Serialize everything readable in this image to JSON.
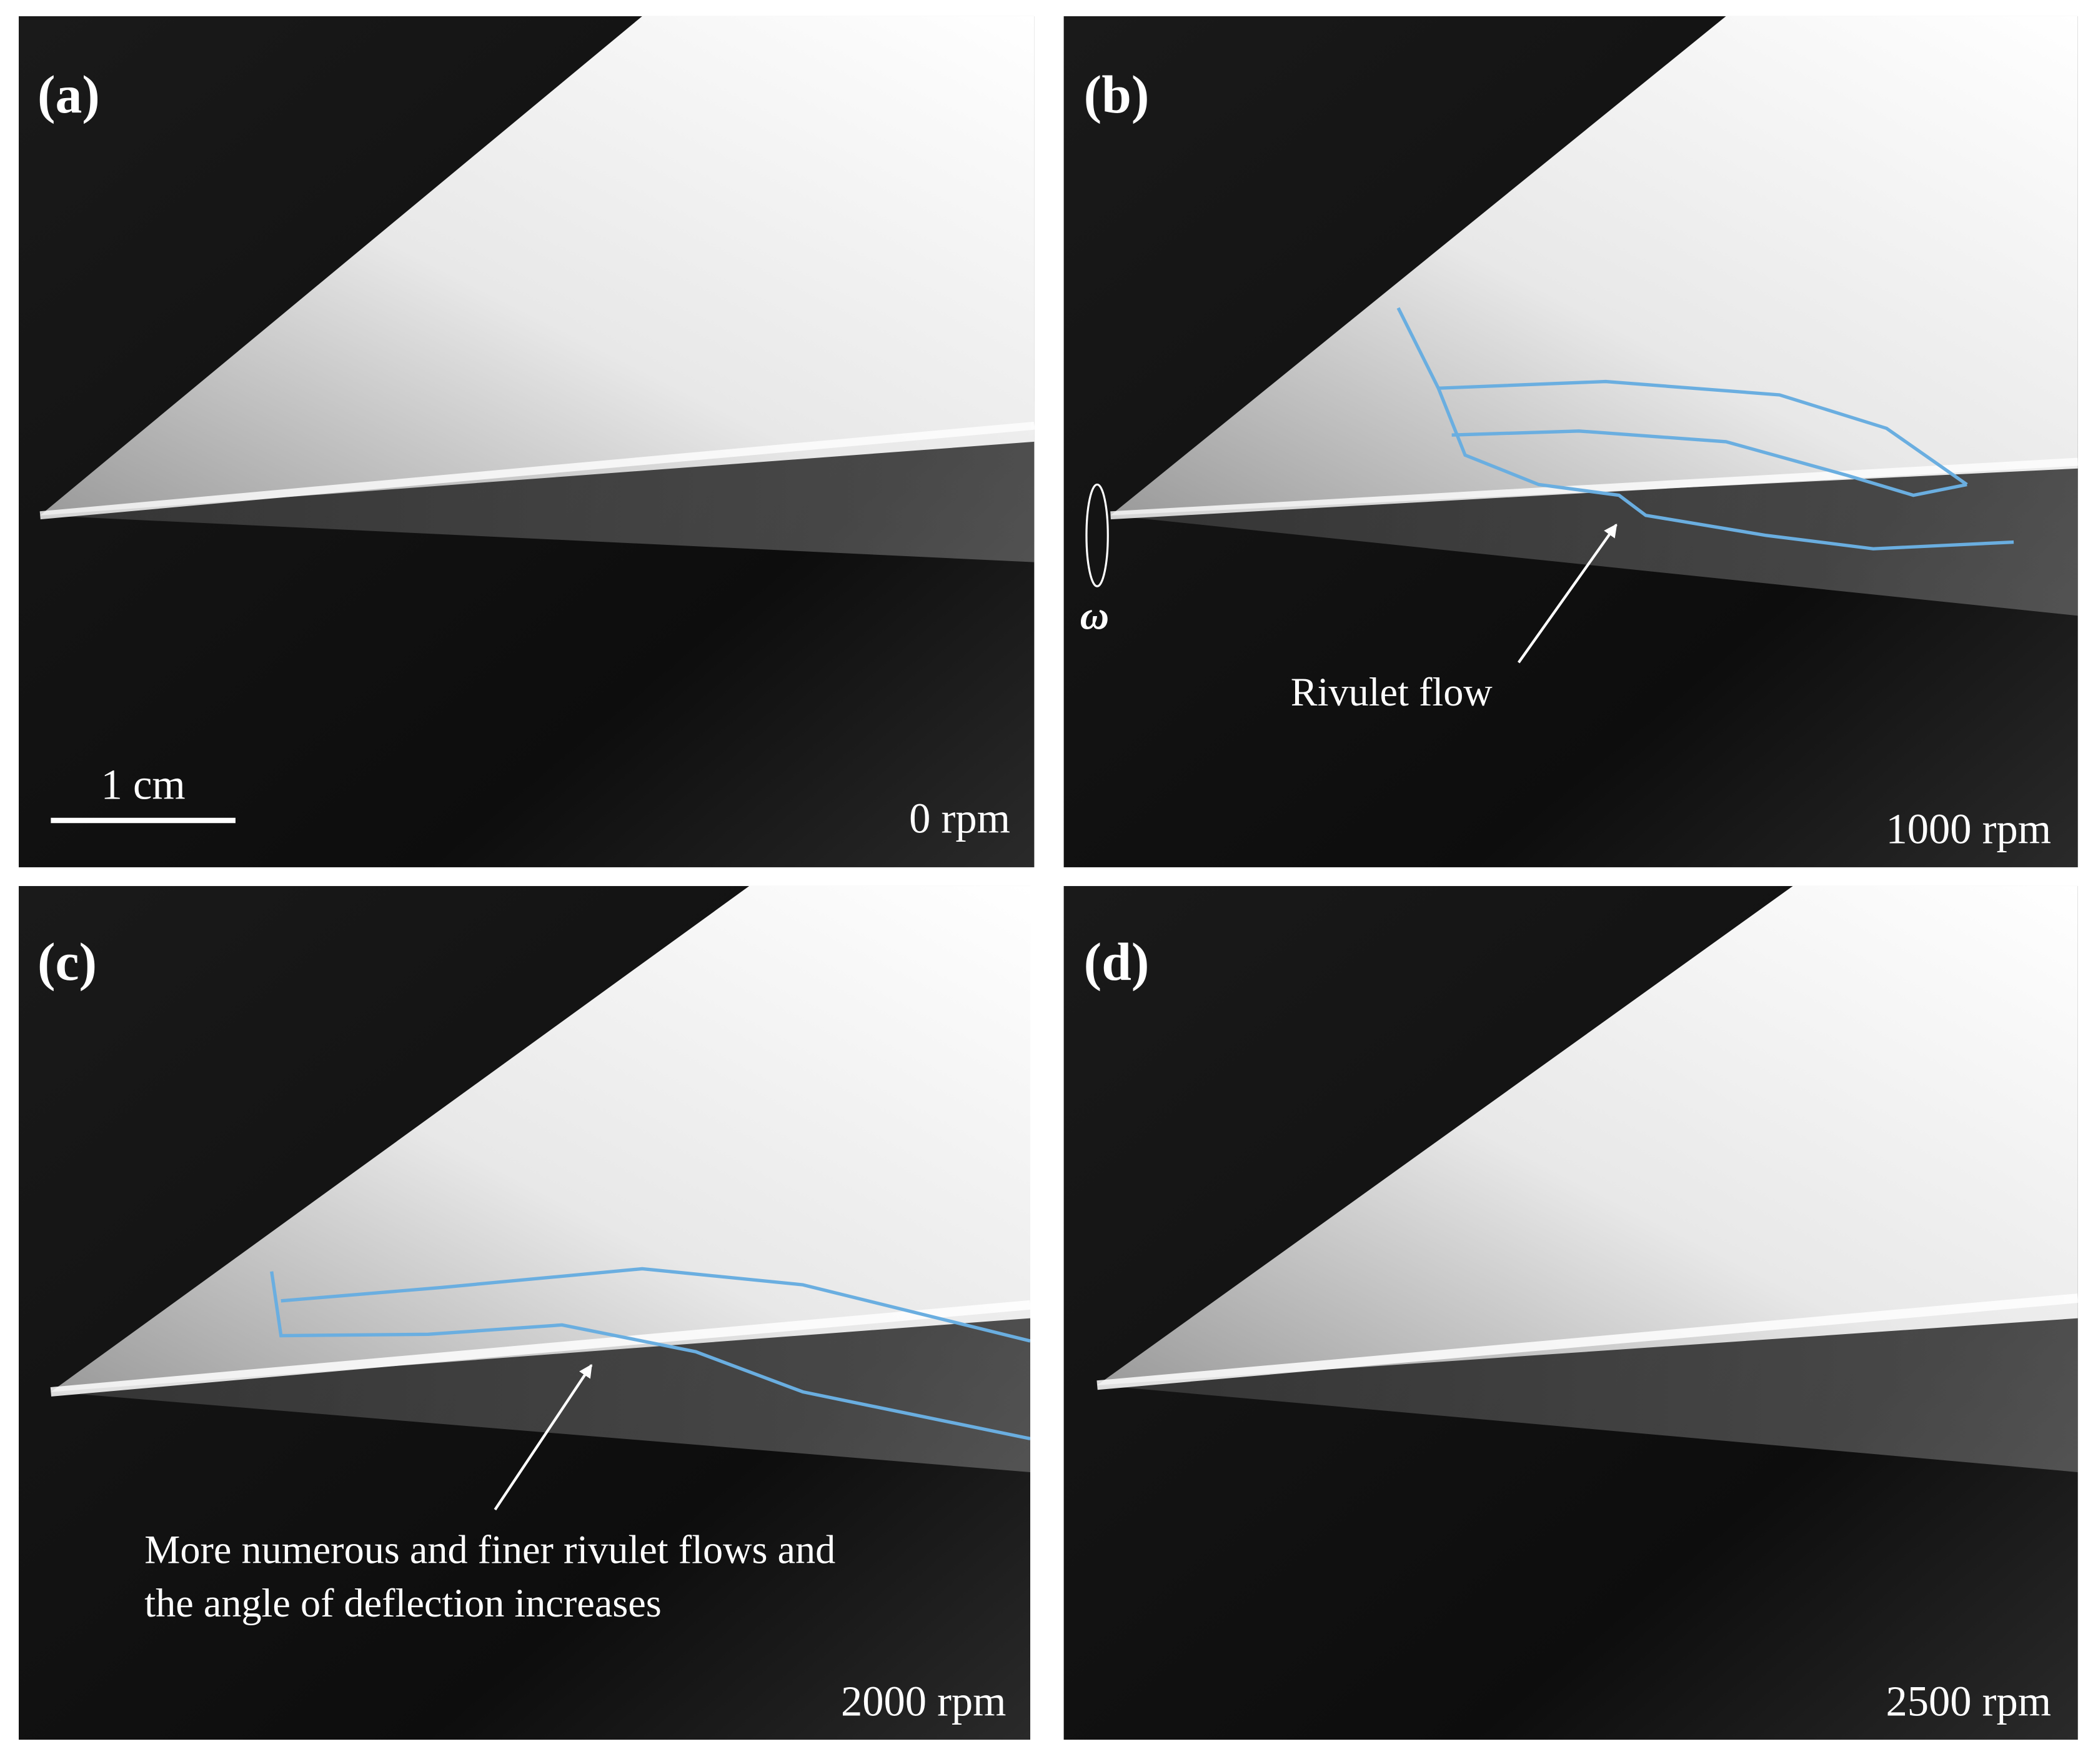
{
  "panels": [
    {
      "label": "(a)",
      "speed": "0 rpm",
      "scale_bar": "1 cm"
    },
    {
      "label": "(b)",
      "speed": "1000 rpm",
      "symbol": "ω",
      "annotation": "Rivulet flow"
    },
    {
      "label": "(c)",
      "speed": "2000 rpm",
      "annotation_lines": [
        "More numerous and finer rivulet flows and",
        "the angle of deflection increases"
      ]
    },
    {
      "label": "(d)",
      "speed": "2500 rpm"
    }
  ]
}
